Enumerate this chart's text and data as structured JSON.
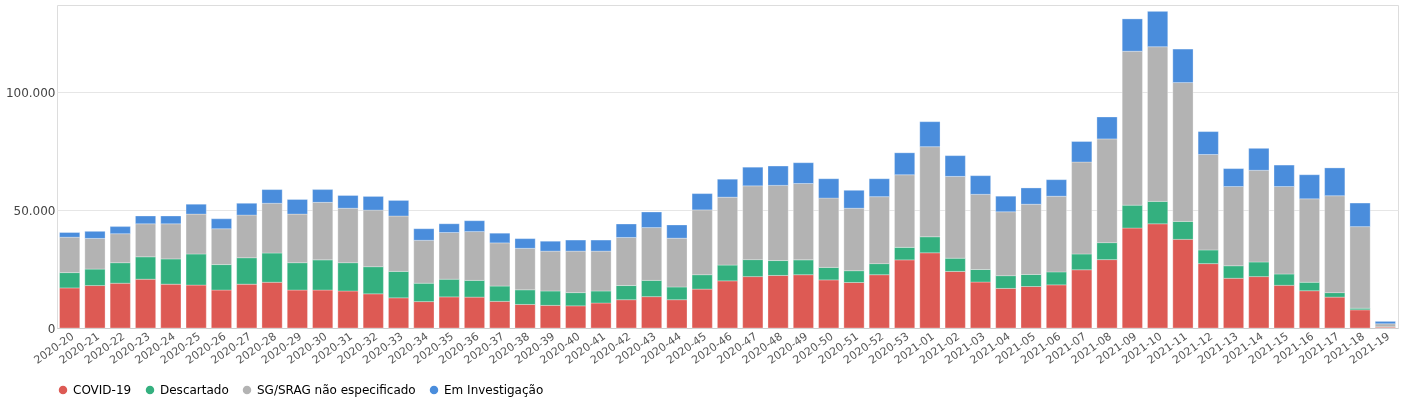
{
  "chart_data": {
    "type": "bar",
    "stacked": true,
    "categories": [
      "2020-20",
      "2020-21",
      "2020-22",
      "2020-23",
      "2020-24",
      "2020-25",
      "2020-26",
      "2020-27",
      "2020-28",
      "2020-29",
      "2020-30",
      "2020-31",
      "2020-32",
      "2020-33",
      "2020-34",
      "2020-35",
      "2020-36",
      "2020-37",
      "2020-38",
      "2020-39",
      "2020-40",
      "2020-41",
      "2020-42",
      "2020-43",
      "2020-44",
      "2020-45",
      "2020-46",
      "2020-47",
      "2020-48",
      "2020-49",
      "2020-50",
      "2020-51",
      "2020-52",
      "2020-53",
      "2021-01",
      "2021-02",
      "2021-03",
      "2021-04",
      "2021-05",
      "2021-06",
      "2021-07",
      "2021-08",
      "2021-09",
      "2021-10",
      "2021-11",
      "2021-12",
      "2021-13",
      "2021-14",
      "2021-15",
      "2021-16",
      "2021-17",
      "2021-18",
      "2021-19"
    ],
    "series": [
      {
        "name": "COVID-19",
        "color": "#dd5a54",
        "values": [
          17000,
          18000,
          19000,
          20700,
          18600,
          18200,
          16100,
          18600,
          19400,
          16100,
          16100,
          15700,
          14500,
          12800,
          11200,
          13200,
          13100,
          11300,
          10000,
          9600,
          9400,
          10600,
          12000,
          13300,
          12000,
          16500,
          20000,
          21800,
          22300,
          22600,
          20400,
          19300,
          22600,
          28900,
          31900,
          24000,
          19500,
          16800,
          17600,
          18300,
          24700,
          29000,
          42400,
          44200,
          37600,
          27300,
          21100,
          21800,
          18100,
          15800,
          13100,
          7700,
          400
        ]
      },
      {
        "name": "Descartado",
        "color": "#34b07f",
        "values": [
          6500,
          7000,
          8700,
          9500,
          10700,
          13200,
          10800,
          11200,
          12400,
          11600,
          12800,
          12000,
          11500,
          11200,
          7800,
          7500,
          7100,
          6500,
          6200,
          6100,
          5600,
          5100,
          6000,
          6900,
          5400,
          6100,
          6700,
          7200,
          6300,
          6300,
          5300,
          5000,
          4700,
          5300,
          6800,
          5600,
          5300,
          5400,
          5100,
          5500,
          6700,
          7200,
          9700,
          9500,
          7600,
          5800,
          5300,
          6200,
          4800,
          3600,
          1900,
          700,
          100
        ]
      },
      {
        "name": "SG/SRAG não especificado",
        "color": "#b3b3b3",
        "values": [
          15000,
          13000,
          12300,
          14000,
          14900,
          16900,
          15200,
          18100,
          21100,
          20600,
          24400,
          23100,
          24000,
          23500,
          18200,
          19800,
          20700,
          18300,
          17600,
          16900,
          17600,
          16900,
          20400,
          22400,
          20700,
          27500,
          28800,
          31300,
          31900,
          32400,
          29400,
          26500,
          28400,
          30800,
          38200,
          34700,
          31900,
          27100,
          29800,
          32100,
          39000,
          44000,
          65300,
          65600,
          58900,
          40500,
          33600,
          38900,
          37100,
          35400,
          41100,
          34600,
          1300
        ]
      },
      {
        "name": "Em Investigação",
        "color": "#4a8ddc",
        "values": [
          2000,
          3000,
          3000,
          3300,
          3300,
          4200,
          4200,
          5000,
          5800,
          6200,
          5400,
          5400,
          5800,
          6600,
          4900,
          3700,
          4600,
          4100,
          4100,
          4200,
          4700,
          4700,
          5700,
          6600,
          5600,
          6900,
          7600,
          7900,
          8200,
          8800,
          8200,
          7600,
          7600,
          9300,
          10600,
          8800,
          7900,
          6600,
          6900,
          7000,
          8700,
          9300,
          13700,
          15000,
          14200,
          9700,
          7600,
          9300,
          9100,
          10200,
          11800,
          10000,
          1000
        ]
      }
    ],
    "ylim": [
      0,
      137000
    ],
    "yticks": [
      0,
      {
        "value": 50000,
        "label": "50.000"
      },
      {
        "value": 100000,
        "label": "100.000"
      }
    ],
    "grid": "y",
    "legend": "bottom"
  }
}
